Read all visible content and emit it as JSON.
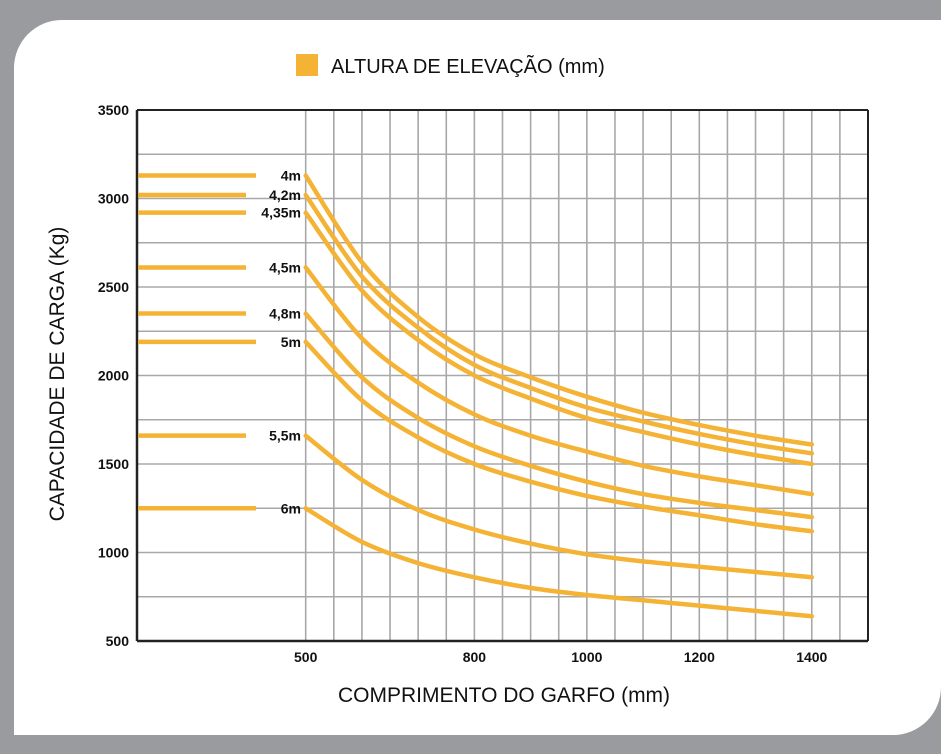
{
  "chart_data": {
    "type": "line",
    "title": "",
    "legend": {
      "label": "ALTURA DE ELEVAÇÃO (mm)",
      "color": "#f5b335",
      "placement": "top-center"
    },
    "xlabel": "COMPRIMENTO DO GARFO (mm)",
    "ylabel": "CAPACIDADE DE CARGA (Kg)",
    "xlim": [
      200,
      1500
    ],
    "ylim": [
      500,
      3500
    ],
    "xticks": [
      "500",
      "800",
      "1000",
      "1200",
      "1400"
    ],
    "yticks": [
      "500",
      "1000",
      "1500",
      "2000",
      "2500",
      "3000",
      "3500"
    ],
    "grid": true,
    "line_color": "#f5b335",
    "x": [
      500,
      600,
      700,
      800,
      900,
      1000,
      1100,
      1200,
      1300,
      1400
    ],
    "series": [
      {
        "name": "4m",
        "values": [
          3130,
          2640,
          2330,
          2120,
          1990,
          1880,
          1790,
          1720,
          1660,
          1610
        ]
      },
      {
        "name": "4,2m",
        "values": [
          3020,
          2560,
          2270,
          2060,
          1930,
          1820,
          1740,
          1670,
          1610,
          1560
        ]
      },
      {
        "name": "4,35m",
        "values": [
          2920,
          2480,
          2200,
          2000,
          1870,
          1760,
          1680,
          1610,
          1550,
          1500
        ]
      },
      {
        "name": "4,5m",
        "values": [
          2610,
          2210,
          1960,
          1780,
          1660,
          1570,
          1490,
          1430,
          1380,
          1330
        ]
      },
      {
        "name": "4,8m",
        "values": [
          2350,
          1990,
          1760,
          1600,
          1490,
          1400,
          1330,
          1280,
          1240,
          1200
        ]
      },
      {
        "name": "5m",
        "values": [
          2190,
          1860,
          1650,
          1500,
          1400,
          1320,
          1260,
          1210,
          1160,
          1120
        ]
      },
      {
        "name": "5,5m",
        "values": [
          1660,
          1410,
          1240,
          1130,
          1050,
          990,
          950,
          920,
          890,
          860
        ]
      },
      {
        "name": "6m",
        "values": [
          1250,
          1060,
          940,
          860,
          800,
          760,
          730,
          700,
          670,
          640
        ]
      }
    ]
  }
}
